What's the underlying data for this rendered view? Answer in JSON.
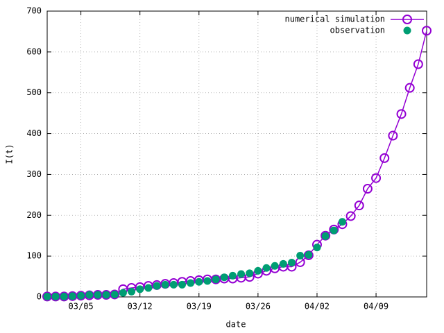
{
  "chart_data": {
    "type": "line",
    "x": [
      "03/01",
      "03/02",
      "03/03",
      "03/04",
      "03/05",
      "03/06",
      "03/07",
      "03/08",
      "03/09",
      "03/10",
      "03/11",
      "03/12",
      "03/13",
      "03/14",
      "03/15",
      "03/16",
      "03/17",
      "03/18",
      "03/19",
      "03/20",
      "03/21",
      "03/22",
      "03/23",
      "03/24",
      "03/25",
      "03/26",
      "03/27",
      "03/28",
      "03/29",
      "03/30",
      "03/31",
      "04/01",
      "04/02",
      "04/03",
      "04/04",
      "04/05",
      "04/06",
      "04/07",
      "04/08",
      "04/09",
      "04/10",
      "04/11",
      "04/12",
      "04/13",
      "04/14",
      "04/15"
    ],
    "series": [
      {
        "name": "numerical simulation",
        "color": "#9400d3",
        "marker": "open-circle",
        "line": true,
        "values": [
          1,
          1,
          1,
          2,
          3,
          4,
          5,
          5,
          6,
          19,
          22,
          24,
          27,
          29,
          32,
          34,
          37,
          39,
          41,
          43,
          43,
          45,
          45,
          47,
          49,
          57,
          64,
          70,
          74,
          74,
          85,
          102,
          128,
          150,
          165,
          178,
          198,
          224,
          265,
          291,
          340,
          395,
          448,
          512,
          570,
          652
        ]
      },
      {
        "name": "observation",
        "color": "#009e73",
        "marker": "filled-circle",
        "line": false,
        "values": [
          1,
          1,
          1,
          2,
          3,
          5,
          5,
          5,
          6,
          10,
          13,
          19,
          22,
          27,
          30,
          30,
          30,
          34,
          37,
          39,
          43,
          48,
          52,
          56,
          58,
          64,
          71,
          76,
          81,
          84,
          101,
          103,
          121,
          149,
          163,
          184,
          null,
          null,
          null,
          null,
          null,
          null,
          null,
          null,
          null,
          null
        ]
      }
    ],
    "xlabel": "date",
    "ylabel": "I(t)",
    "xlim": [
      "03/01",
      "04/15"
    ],
    "xticks": [
      "03/05",
      "03/12",
      "03/19",
      "03/26",
      "04/02",
      "04/09"
    ],
    "ylim": [
      0,
      700
    ],
    "yticks": [
      0,
      100,
      200,
      300,
      400,
      500,
      600,
      700
    ],
    "grid": true,
    "legend": "top-right"
  }
}
